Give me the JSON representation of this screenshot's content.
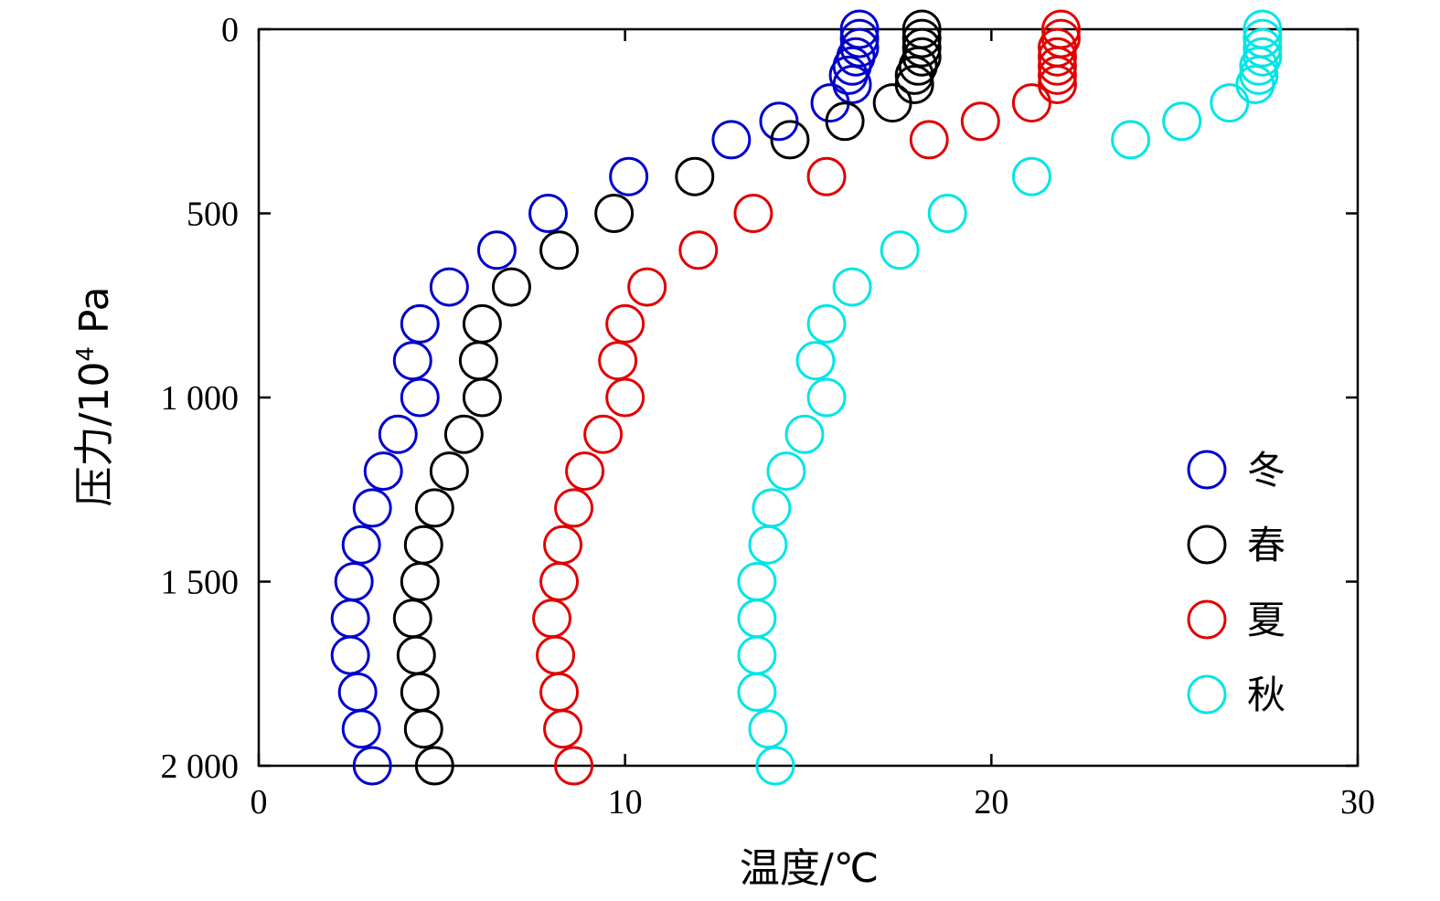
{
  "chart_data": {
    "type": "scatter",
    "xlabel": "温度/℃",
    "ylabel": "压力/10",
    "ylabel_sup": "4",
    "ylabel_unit": " Pa",
    "xlim": [
      0,
      30
    ],
    "ylim": [
      0,
      2000
    ],
    "y_inverted": true,
    "x_ticks": [
      "0",
      "10",
      "20",
      "30"
    ],
    "y_ticks": [
      "0",
      "500",
      "1 000",
      "1 500",
      "2 000"
    ],
    "grid": false,
    "legend_position": "bottom-right",
    "marker": "open-circle",
    "series": [
      {
        "name": "冬",
        "color": "#0000cc",
        "points": [
          [
            16.4,
            0
          ],
          [
            16.4,
            25
          ],
          [
            16.4,
            50
          ],
          [
            16.3,
            75
          ],
          [
            16.2,
            100
          ],
          [
            16.1,
            125
          ],
          [
            16.2,
            150
          ],
          [
            15.6,
            200
          ],
          [
            14.2,
            250
          ],
          [
            12.9,
            300
          ],
          [
            10.1,
            400
          ],
          [
            7.9,
            500
          ],
          [
            6.5,
            600
          ],
          [
            5.2,
            700
          ],
          [
            4.4,
            800
          ],
          [
            4.2,
            900
          ],
          [
            4.4,
            1000
          ],
          [
            3.8,
            1100
          ],
          [
            3.4,
            1200
          ],
          [
            3.1,
            1300
          ],
          [
            2.8,
            1400
          ],
          [
            2.6,
            1500
          ],
          [
            2.5,
            1600
          ],
          [
            2.5,
            1700
          ],
          [
            2.7,
            1800
          ],
          [
            2.8,
            1900
          ],
          [
            3.1,
            2000
          ]
        ]
      },
      {
        "name": "春",
        "color": "#000000",
        "points": [
          [
            18.1,
            0
          ],
          [
            18.1,
            25
          ],
          [
            18.1,
            50
          ],
          [
            18.1,
            75
          ],
          [
            18.0,
            100
          ],
          [
            17.9,
            125
          ],
          [
            17.9,
            150
          ],
          [
            17.3,
            200
          ],
          [
            16.0,
            250
          ],
          [
            14.5,
            300
          ],
          [
            11.9,
            400
          ],
          [
            9.7,
            500
          ],
          [
            8.2,
            600
          ],
          [
            6.9,
            700
          ],
          [
            6.1,
            800
          ],
          [
            6.0,
            900
          ],
          [
            6.1,
            1000
          ],
          [
            5.6,
            1100
          ],
          [
            5.2,
            1200
          ],
          [
            4.8,
            1300
          ],
          [
            4.5,
            1400
          ],
          [
            4.4,
            1500
          ],
          [
            4.2,
            1600
          ],
          [
            4.3,
            1700
          ],
          [
            4.4,
            1800
          ],
          [
            4.5,
            1900
          ],
          [
            4.8,
            2000
          ]
        ]
      },
      {
        "name": "夏",
        "color": "#e00000",
        "points": [
          [
            21.9,
            0
          ],
          [
            21.9,
            25
          ],
          [
            21.8,
            50
          ],
          [
            21.8,
            75
          ],
          [
            21.8,
            100
          ],
          [
            21.8,
            125
          ],
          [
            21.8,
            150
          ],
          [
            21.1,
            200
          ],
          [
            19.7,
            250
          ],
          [
            18.3,
            300
          ],
          [
            15.5,
            400
          ],
          [
            13.5,
            500
          ],
          [
            12.0,
            600
          ],
          [
            10.6,
            700
          ],
          [
            10.0,
            800
          ],
          [
            9.8,
            900
          ],
          [
            10.0,
            1000
          ],
          [
            9.4,
            1100
          ],
          [
            8.9,
            1200
          ],
          [
            8.6,
            1300
          ],
          [
            8.3,
            1400
          ],
          [
            8.2,
            1500
          ],
          [
            8.0,
            1600
          ],
          [
            8.1,
            1700
          ],
          [
            8.2,
            1800
          ],
          [
            8.3,
            1900
          ],
          [
            8.6,
            2000
          ]
        ]
      },
      {
        "name": "秋",
        "color": "#00e5e5",
        "points": [
          [
            27.4,
            0
          ],
          [
            27.4,
            25
          ],
          [
            27.4,
            50
          ],
          [
            27.4,
            75
          ],
          [
            27.3,
            100
          ],
          [
            27.3,
            125
          ],
          [
            27.2,
            150
          ],
          [
            26.5,
            200
          ],
          [
            25.2,
            250
          ],
          [
            23.8,
            300
          ],
          [
            21.1,
            400
          ],
          [
            18.8,
            500
          ],
          [
            17.5,
            600
          ],
          [
            16.2,
            700
          ],
          [
            15.5,
            800
          ],
          [
            15.2,
            900
          ],
          [
            15.5,
            1000
          ],
          [
            14.9,
            1100
          ],
          [
            14.4,
            1200
          ],
          [
            14.0,
            1300
          ],
          [
            13.9,
            1400
          ],
          [
            13.6,
            1500
          ],
          [
            13.6,
            1600
          ],
          [
            13.6,
            1700
          ],
          [
            13.6,
            1800
          ],
          [
            13.9,
            1900
          ],
          [
            14.1,
            2000
          ]
        ]
      }
    ]
  }
}
